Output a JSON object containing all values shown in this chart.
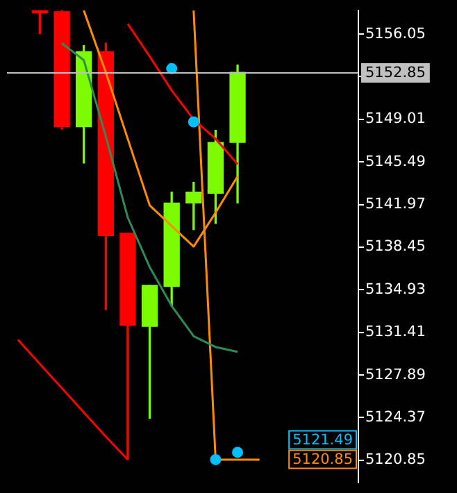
{
  "chart_data": {
    "type": "candlestick",
    "categories": [
      null,
      null,
      null,
      null,
      null,
      null,
      null,
      null,
      null,
      null,
      null,
      null,
      null,
      null,
      null,
      null
    ],
    "ohlc": [
      null,
      [
        5158.0,
        5158.0,
        5156.1,
        5157.8
      ],
      [
        5157.9,
        5158.0,
        5148.2,
        5148.4
      ],
      [
        5148.4,
        5155.1,
        5145.4,
        5154.6
      ],
      [
        5154.6,
        5155.3,
        5133.3,
        5139.4
      ],
      [
        5139.6,
        5139.6,
        5120.9,
        5132.0
      ],
      [
        5131.9,
        5135.3,
        5124.3,
        5135.3
      ],
      [
        5135.2,
        5143.0,
        5133.6,
        5142.1
      ],
      [
        5142.1,
        5143.8,
        5139.9,
        5143.0
      ],
      [
        5142.9,
        5148.1,
        5140.4,
        5147.1
      ],
      [
        5147.1,
        5153.5,
        5142.1,
        5152.9
      ],
      null,
      null,
      null,
      null,
      null
    ],
    "colors": [
      null,
      "#ff0000",
      "#ff0000",
      "#7cfc00",
      "#ff0000",
      "#ff0000",
      "#7cfc00",
      "#7cfc00",
      "#7cfc00",
      "#7cfc00",
      "#7cfc00",
      null,
      null,
      null,
      null,
      null
    ],
    "series": [
      {
        "type": "line",
        "color": "#ff8c00",
        "values": [
          null,
          null,
          null,
          5158.0,
          5152.9,
          5147.4,
          5141.9,
          5140.2,
          5138.5,
          5141.3,
          5144.3,
          null,
          null,
          null,
          null,
          null
        ]
      },
      {
        "type": "line",
        "color": "#ff0000",
        "values": [
          null,
          null,
          null,
          null,
          null,
          5156.9,
          5154.2,
          5151.4,
          5149.0,
          5147.4,
          5145.3,
          null,
          null,
          null,
          null,
          null
        ]
      },
      {
        "type": "line",
        "color": "#2e8b57",
        "values": [
          null,
          null,
          5155.3,
          5153.9,
          5147.6,
          5140.9,
          5136.8,
          5133.6,
          5131.1,
          5130.2,
          5129.8,
          null,
          null,
          null,
          null,
          null
        ]
      },
      {
        "type": "line",
        "color": "#ff0000",
        "values": [
          5130.8,
          5128.8,
          5126.8,
          5124.8,
          5122.8,
          5120.9,
          null,
          null,
          null,
          null,
          null,
          null,
          null,
          null,
          null,
          null
        ]
      },
      {
        "type": "line",
        "color": "#ff8c00",
        "values": [
          null,
          null,
          null,
          null,
          null,
          null,
          null,
          null,
          5158.0,
          5120.9,
          5120.9,
          5120.9,
          null,
          null,
          null,
          null
        ]
      },
      {
        "type": "scatter",
        "color": "#00bfff",
        "values": [
          null,
          null,
          null,
          null,
          null,
          null,
          null,
          5153.2,
          5148.8,
          5120.9,
          5121.5,
          null,
          null,
          null,
          null,
          null
        ]
      }
    ],
    "ylim": [
      5118.98,
      5158.03
    ],
    "yticks": [
      5120.85,
      5124.37,
      5127.89,
      5131.41,
      5134.93,
      5138.45,
      5141.97,
      5145.49,
      5149.01,
      {
        "value": 5152.53,
        "label": null
      },
      5156.05
    ],
    "ref_lines": [
      {
        "axis": "y",
        "value": 5152.85,
        "label": "5152.85",
        "color": "#c0c0c0"
      }
    ],
    "annotations": [
      "5121.49",
      "5120.85"
    ],
    "grid": false,
    "legend": false
  }
}
